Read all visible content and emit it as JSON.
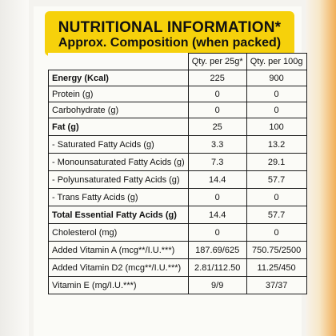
{
  "header": {
    "title": "NUTRITIONAL INFORMATION*",
    "subtitle": "Approx. Composition (when packed)"
  },
  "table": {
    "columns": [
      "Qty. per 25g*",
      "Qty. per 100g"
    ],
    "rows": [
      {
        "name": "Energy (Kcal)",
        "v1": "225",
        "v2": "900"
      },
      {
        "name": "Protein (g)",
        "v1": "0",
        "v2": "0"
      },
      {
        "name": "Carbohydrate (g)",
        "v1": "0",
        "v2": "0"
      },
      {
        "name": "Fat (g)",
        "v1": "25",
        "v2": "100"
      },
      {
        "name": "- Saturated Fatty Acids (g)",
        "v1": "3.3",
        "v2": "13.2"
      },
      {
        "name": "- Monounsaturated Fatty Acids (g)",
        "v1": "7.3",
        "v2": "29.1"
      },
      {
        "name": "- Polyunsaturated Fatty Acids (g)",
        "v1": "14.4",
        "v2": "57.7"
      },
      {
        "name": "- Trans Fatty Acids (g)",
        "v1": "0",
        "v2": "0"
      },
      {
        "name": "Total Essential Fatty Acids (g)",
        "v1": "14.4",
        "v2": "57.7"
      },
      {
        "name": "Cholesterol (mg)",
        "v1": "0",
        "v2": "0"
      },
      {
        "name": "Added Vitamin A (mcg**/I.U.***)",
        "v1": "187.69/625",
        "v2": "750.75/2500"
      },
      {
        "name": "Added Vitamin D2 (mcg**/I.U.***)",
        "v1": "2.81/112.50",
        "v2": "11.25/450"
      },
      {
        "name": "Vitamin E (mg/I.U.***)",
        "v1": "9/9",
        "v2": "37/37"
      }
    ]
  },
  "colors": {
    "header_background": "#f6d10b",
    "text": "#111111",
    "side_accent": "#f2b05a"
  }
}
